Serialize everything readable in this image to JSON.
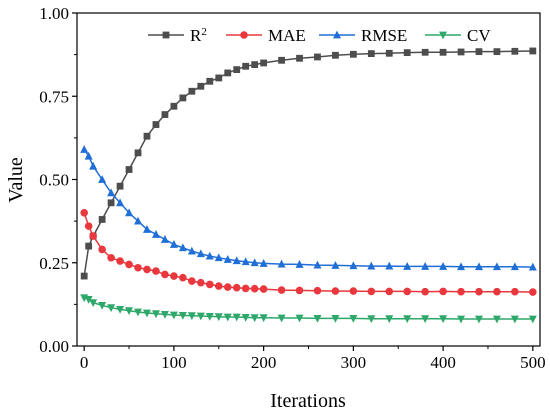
{
  "chart_data": {
    "type": "line",
    "xlabel": "Iterations",
    "ylabel": "Value",
    "xlim": [
      -8,
      508
    ],
    "ylim": [
      0,
      1
    ],
    "x_ticks": [
      "0",
      "100",
      "200",
      "300",
      "400",
      "500"
    ],
    "x_tick_values": [
      0,
      100,
      200,
      300,
      400,
      500
    ],
    "y_ticks": [
      "0.00",
      "0.25",
      "0.50",
      "0.75",
      "1.00"
    ],
    "y_tick_values": [
      0,
      0.25,
      0.5,
      0.75,
      1.0
    ],
    "legend_position": "top",
    "grid": false,
    "x": [
      0,
      5,
      10,
      20,
      30,
      40,
      50,
      60,
      70,
      80,
      90,
      100,
      110,
      120,
      130,
      140,
      150,
      160,
      170,
      180,
      190,
      200,
      220,
      240,
      260,
      280,
      300,
      320,
      340,
      360,
      380,
      400,
      420,
      440,
      460,
      480,
      500
    ],
    "series": [
      {
        "name": "R",
        "name_sup": "2",
        "color": "#4d4d4d",
        "marker": "square",
        "values": [
          0.21,
          0.3,
          0.33,
          0.38,
          0.43,
          0.48,
          0.53,
          0.58,
          0.63,
          0.665,
          0.695,
          0.72,
          0.745,
          0.765,
          0.78,
          0.795,
          0.805,
          0.82,
          0.83,
          0.84,
          0.845,
          0.85,
          0.858,
          0.864,
          0.868,
          0.873,
          0.876,
          0.878,
          0.879,
          0.881,
          0.882,
          0.882,
          0.883,
          0.884,
          0.884,
          0.885,
          0.886
        ]
      },
      {
        "name": "MAE",
        "color": "#e8383d",
        "marker": "circle",
        "values": [
          0.4,
          0.36,
          0.33,
          0.29,
          0.265,
          0.255,
          0.245,
          0.235,
          0.23,
          0.225,
          0.215,
          0.21,
          0.205,
          0.195,
          0.19,
          0.185,
          0.18,
          0.177,
          0.175,
          0.173,
          0.172,
          0.171,
          0.168,
          0.167,
          0.166,
          0.165,
          0.165,
          0.164,
          0.164,
          0.164,
          0.163,
          0.164,
          0.163,
          0.163,
          0.163,
          0.163,
          0.162
        ]
      },
      {
        "name": "RMSE",
        "color": "#1f6fd6",
        "marker": "triangle-up",
        "values": [
          0.59,
          0.57,
          0.54,
          0.5,
          0.46,
          0.43,
          0.4,
          0.375,
          0.35,
          0.335,
          0.32,
          0.305,
          0.295,
          0.285,
          0.277,
          0.27,
          0.265,
          0.26,
          0.256,
          0.253,
          0.25,
          0.248,
          0.246,
          0.245,
          0.243,
          0.242,
          0.241,
          0.24,
          0.24,
          0.239,
          0.239,
          0.239,
          0.238,
          0.238,
          0.238,
          0.238,
          0.237
        ]
      },
      {
        "name": "CV",
        "color": "#2ea86a",
        "marker": "triangle-down",
        "values": [
          0.145,
          0.14,
          0.13,
          0.122,
          0.115,
          0.11,
          0.106,
          0.102,
          0.099,
          0.097,
          0.095,
          0.093,
          0.092,
          0.091,
          0.09,
          0.089,
          0.088,
          0.087,
          0.087,
          0.086,
          0.085,
          0.085,
          0.084,
          0.084,
          0.083,
          0.083,
          0.083,
          0.082,
          0.082,
          0.082,
          0.082,
          0.082,
          0.081,
          0.081,
          0.081,
          0.081,
          0.081
        ]
      }
    ]
  }
}
